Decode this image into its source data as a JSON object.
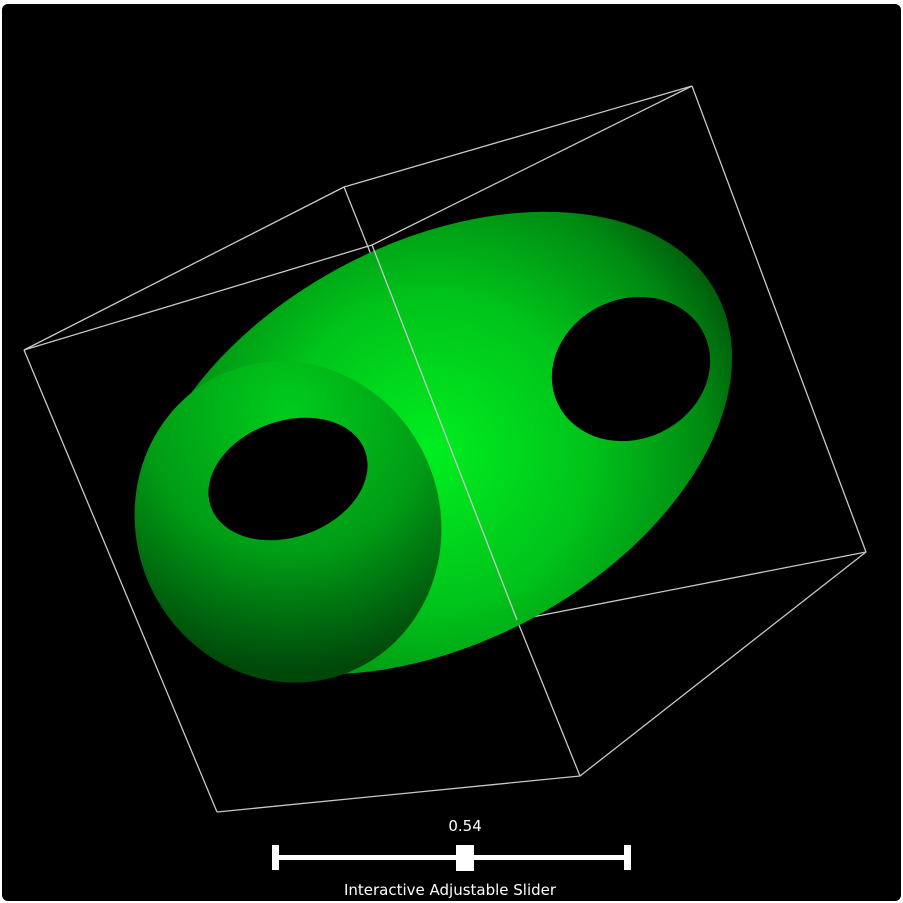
{
  "scene": {
    "background_color": "#000000",
    "surface_color": "#00e61e",
    "outline_color": "#c8c8c8"
  },
  "slider": {
    "value_text": "0.54",
    "value": 0.54,
    "min": 0,
    "max": 1,
    "title": "Interactive Adjustable Slider",
    "color": "#ffffff"
  }
}
